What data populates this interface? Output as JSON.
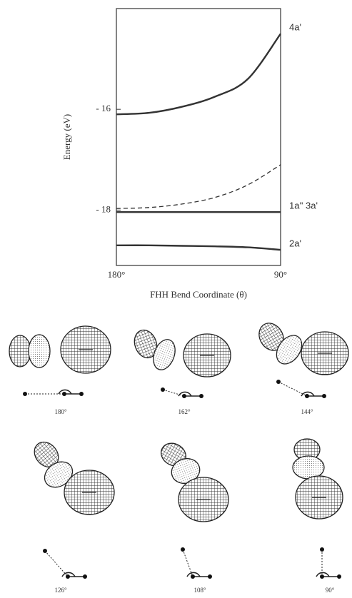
{
  "chart_data": {
    "type": "line",
    "x_label": "FHH Bend Coordinate (θ)",
    "y_label": "Energy (eV)",
    "x": [
      180,
      162,
      144,
      126,
      108,
      90
    ],
    "xlim": [
      180,
      90
    ],
    "xticks": [
      {
        "value": 180,
        "label": "180°"
      },
      {
        "value": 90,
        "label": "90°"
      }
    ],
    "ylim": [
      -19.1,
      -14
    ],
    "yticks": [
      {
        "value": -16,
        "label": "- 16"
      },
      {
        "value": -18,
        "label": "- 18"
      }
    ],
    "series": [
      {
        "name": "4a'",
        "color": "#333333",
        "style": "solid",
        "values": [
          -16.1,
          -16.07,
          -15.95,
          -15.75,
          -15.4,
          -14.5
        ]
      },
      {
        "color": "#333333",
        "style": "dashed",
        "values": [
          -17.97,
          -17.95,
          -17.88,
          -17.75,
          -17.5,
          -17.1
        ]
      },
      {
        "name": "1a'' 3a'",
        "color": "#333333",
        "style": "solid",
        "values": [
          -18.04,
          -18.04,
          -18.04,
          -18.04,
          -18.04,
          -18.04
        ]
      },
      {
        "name": "2a'",
        "color": "#333333",
        "style": "solid",
        "values": [
          -18.7,
          -18.7,
          -18.71,
          -18.72,
          -18.74,
          -18.79
        ]
      }
    ]
  },
  "panels": [
    {
      "label": "180°"
    },
    {
      "label": "162°"
    },
    {
      "label": "144°"
    },
    {
      "label": "126°"
    },
    {
      "label": "108°"
    },
    {
      "label": "90°"
    }
  ]
}
